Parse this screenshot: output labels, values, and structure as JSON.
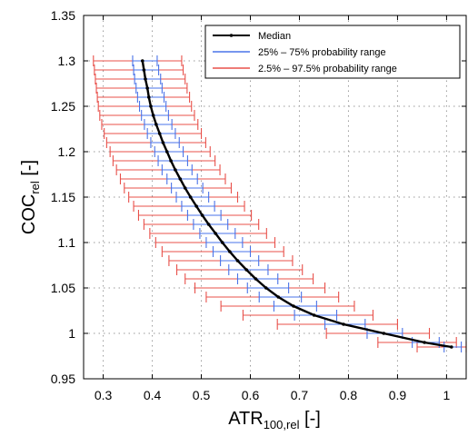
{
  "chart_data": {
    "type": "line",
    "title": "",
    "xlabel": {
      "main": "ATR",
      "sub": "100,rel",
      "unit": " [-]"
    },
    "ylabel": {
      "main": "COC",
      "sub": "rel",
      "unit": " [-]"
    },
    "xlim": [
      0.26,
      1.04
    ],
    "ylim": [
      0.95,
      1.35
    ],
    "x_ticks": [
      "0.3",
      "0.4",
      "0.5",
      "0.6",
      "0.7",
      "0.8",
      "0.9",
      "1"
    ],
    "y_ticks": [
      "0.95",
      "1",
      "1.05",
      "1.1",
      "1.15",
      "1.2",
      "1.25",
      "1.3",
      "1.35"
    ],
    "grid": true,
    "legend_position": "top-right",
    "colors": {
      "median": "#000000",
      "iqr": "#4a73e8",
      "ci95": "#e8504a"
    },
    "series": [
      {
        "name": "Median",
        "style": "line-with-dots"
      },
      {
        "name": "25% – 75% probability range",
        "style": "error-bars"
      },
      {
        "name": "2.5% – 97.5% probability range",
        "style": "error-bars"
      }
    ],
    "points": [
      {
        "y": 1.3,
        "median": 0.38,
        "p25": 0.36,
        "p75": 0.41,
        "p2_5": 0.28,
        "p97_5": 0.46
      },
      {
        "y": 1.29,
        "median": 0.383,
        "p25": 0.362,
        "p75": 0.413,
        "p2_5": 0.282,
        "p97_5": 0.463
      },
      {
        "y": 1.28,
        "median": 0.386,
        "p25": 0.364,
        "p75": 0.417,
        "p2_5": 0.284,
        "p97_5": 0.467
      },
      {
        "y": 1.27,
        "median": 0.39,
        "p25": 0.367,
        "p75": 0.42,
        "p2_5": 0.286,
        "p97_5": 0.471
      },
      {
        "y": 1.26,
        "median": 0.393,
        "p25": 0.37,
        "p75": 0.424,
        "p2_5": 0.288,
        "p97_5": 0.476
      },
      {
        "y": 1.25,
        "median": 0.397,
        "p25": 0.374,
        "p75": 0.428,
        "p2_5": 0.29,
        "p97_5": 0.48
      },
      {
        "y": 1.24,
        "median": 0.402,
        "p25": 0.378,
        "p75": 0.433,
        "p2_5": 0.293,
        "p97_5": 0.486
      },
      {
        "y": 1.23,
        "median": 0.408,
        "p25": 0.384,
        "p75": 0.44,
        "p2_5": 0.297,
        "p97_5": 0.493
      },
      {
        "y": 1.22,
        "median": 0.415,
        "p25": 0.39,
        "p75": 0.447,
        "p2_5": 0.302,
        "p97_5": 0.5
      },
      {
        "y": 1.21,
        "median": 0.422,
        "p25": 0.397,
        "p75": 0.455,
        "p2_5": 0.307,
        "p97_5": 0.509
      },
      {
        "y": 1.2,
        "median": 0.43,
        "p25": 0.405,
        "p75": 0.463,
        "p2_5": 0.314,
        "p97_5": 0.518
      },
      {
        "y": 1.19,
        "median": 0.438,
        "p25": 0.412,
        "p75": 0.472,
        "p2_5": 0.32,
        "p97_5": 0.528
      },
      {
        "y": 1.18,
        "median": 0.447,
        "p25": 0.42,
        "p75": 0.481,
        "p2_5": 0.327,
        "p97_5": 0.538
      },
      {
        "y": 1.17,
        "median": 0.457,
        "p25": 0.43,
        "p75": 0.492,
        "p2_5": 0.335,
        "p97_5": 0.549
      },
      {
        "y": 1.16,
        "median": 0.467,
        "p25": 0.439,
        "p75": 0.503,
        "p2_5": 0.343,
        "p97_5": 0.561
      },
      {
        "y": 1.15,
        "median": 0.478,
        "p25": 0.449,
        "p75": 0.515,
        "p2_5": 0.352,
        "p97_5": 0.574
      },
      {
        "y": 1.14,
        "median": 0.49,
        "p25": 0.46,
        "p75": 0.527,
        "p2_5": 0.362,
        "p97_5": 0.588
      },
      {
        "y": 1.13,
        "median": 0.502,
        "p25": 0.472,
        "p75": 0.54,
        "p2_5": 0.372,
        "p97_5": 0.602
      },
      {
        "y": 1.12,
        "median": 0.515,
        "p25": 0.484,
        "p75": 0.554,
        "p2_5": 0.383,
        "p97_5": 0.617
      },
      {
        "y": 1.11,
        "median": 0.529,
        "p25": 0.497,
        "p75": 0.569,
        "p2_5": 0.395,
        "p97_5": 0.633
      },
      {
        "y": 1.1,
        "median": 0.543,
        "p25": 0.51,
        "p75": 0.584,
        "p2_5": 0.407,
        "p97_5": 0.65
      },
      {
        "y": 1.09,
        "median": 0.558,
        "p25": 0.524,
        "p75": 0.6,
        "p2_5": 0.42,
        "p97_5": 0.668
      },
      {
        "y": 1.08,
        "median": 0.574,
        "p25": 0.539,
        "p75": 0.617,
        "p2_5": 0.434,
        "p97_5": 0.686
      },
      {
        "y": 1.07,
        "median": 0.592,
        "p25": 0.556,
        "p75": 0.636,
        "p2_5": 0.45,
        "p97_5": 0.706
      },
      {
        "y": 1.06,
        "median": 0.611,
        "p25": 0.574,
        "p75": 0.656,
        "p2_5": 0.467,
        "p97_5": 0.728
      },
      {
        "y": 1.05,
        "median": 0.632,
        "p25": 0.594,
        "p75": 0.678,
        "p2_5": 0.487,
        "p97_5": 0.752
      },
      {
        "y": 1.04,
        "median": 0.657,
        "p25": 0.618,
        "p75": 0.704,
        "p2_5": 0.51,
        "p97_5": 0.78
      },
      {
        "y": 1.03,
        "median": 0.688,
        "p25": 0.648,
        "p75": 0.735,
        "p2_5": 0.54,
        "p97_5": 0.812
      },
      {
        "y": 1.02,
        "median": 0.73,
        "p25": 0.69,
        "p75": 0.776,
        "p2_5": 0.585,
        "p97_5": 0.85
      },
      {
        "y": 1.01,
        "median": 0.79,
        "p25": 0.752,
        "p75": 0.834,
        "p2_5": 0.655,
        "p97_5": 0.9
      },
      {
        "y": 1.0,
        "median": 0.872,
        "p25": 0.838,
        "p75": 0.91,
        "p2_5": 0.755,
        "p97_5": 0.965
      },
      {
        "y": 0.99,
        "median": 0.955,
        "p25": 0.93,
        "p75": 0.985,
        "p2_5": 0.86,
        "p97_5": 1.02
      },
      {
        "y": 0.985,
        "median": 1.01,
        "p25": 0.995,
        "p75": 1.03,
        "p2_5": 0.94,
        "p97_5": 1.04
      }
    ]
  }
}
